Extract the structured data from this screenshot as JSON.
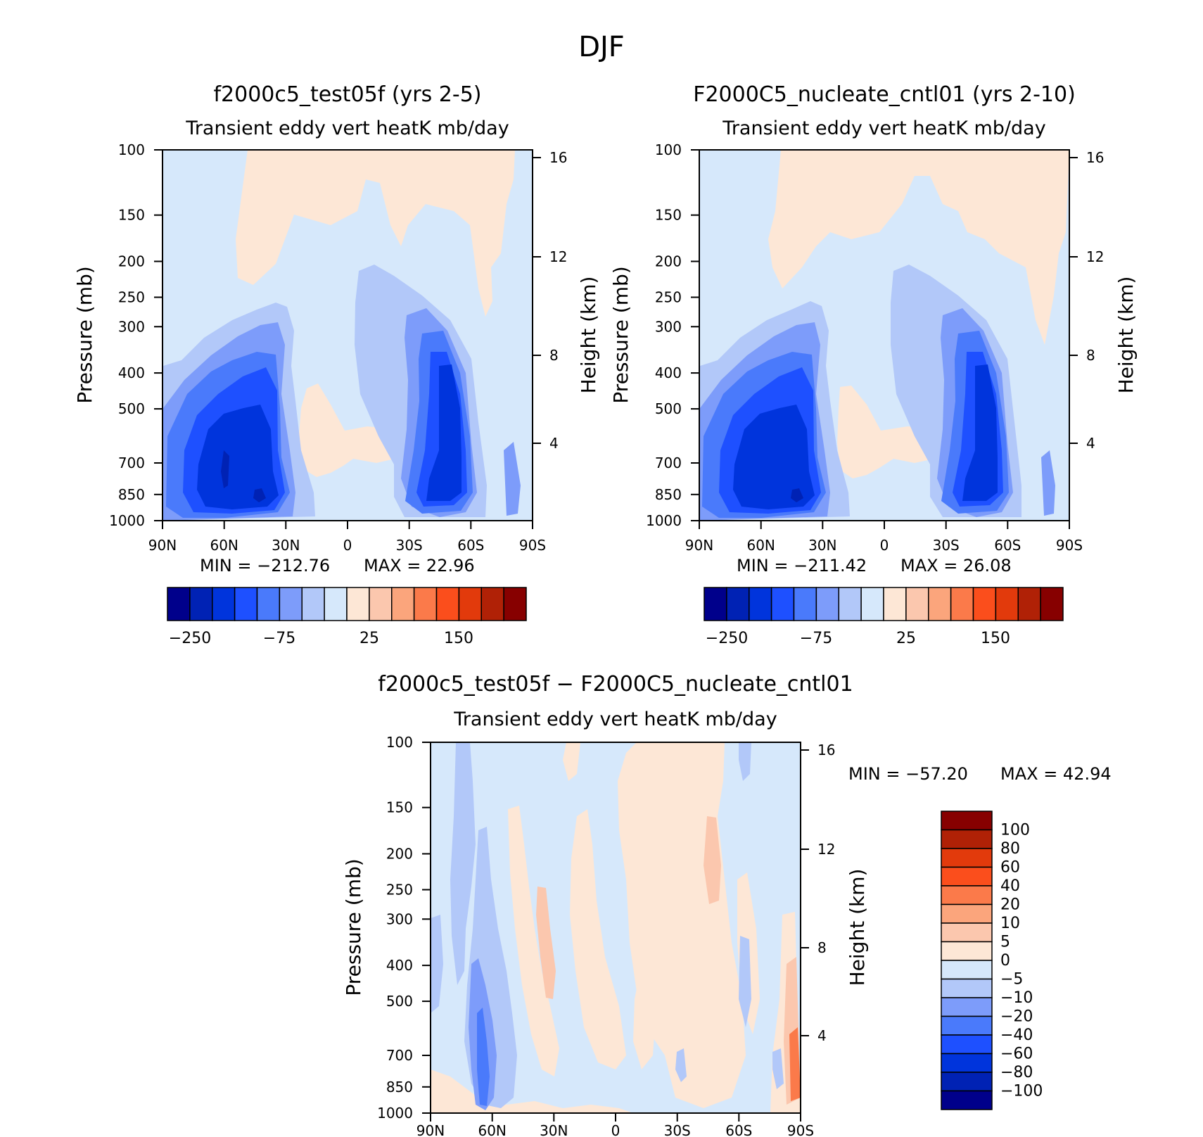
{
  "figure_title": "DJF",
  "colors": {
    "main_scale": [
      "#00008b",
      "#0022b4",
      "#0034dc",
      "#1e50ff",
      "#4a7afb",
      "#7d9cfa",
      "#b2c8f9",
      "#d6e8fb",
      "#fde7d6",
      "#fbc7ae",
      "#fba57c",
      "#fb7a4a",
      "#fb4e1c",
      "#e23a0c",
      "#b02106",
      "#870000"
    ],
    "diff_scale": [
      "#00008b",
      "#0022b4",
      "#0034dc",
      "#1e50ff",
      "#4a7afb",
      "#7d9cfa",
      "#b2c8f9",
      "#d6e8fb",
      "#fde7d6",
      "#fbc7ae",
      "#fba57c",
      "#fb7a4a",
      "#fb4e1c",
      "#e23a0c",
      "#b02106",
      "#870000"
    ]
  },
  "chart_data": [
    {
      "type": "heatmap",
      "title": "f2000c5_test05f (yrs 2-5)",
      "subtitle": "Transient eddy vert heatK mb/day",
      "ylabel": "Pressure (mb)",
      "y2label": "Height (km)",
      "x_ticks": [
        "90N",
        "60N",
        "30N",
        "0",
        "30S",
        "60S",
        "90S"
      ],
      "y_ticks": [
        100,
        150,
        200,
        250,
        300,
        400,
        500,
        700,
        850,
        1000
      ],
      "y_log": true,
      "y2_ticks": [
        4,
        8,
        12,
        16
      ],
      "min_label": "MIN = −212.76",
      "max_label": "MAX = 22.96",
      "colorbar_labels": [
        "−250",
        "−75",
        "25",
        "150"
      ],
      "colorbar_levels": 16
    },
    {
      "type": "heatmap",
      "title": "F2000C5_nucleate_cntl01 (yrs 2-10)",
      "subtitle": "Transient eddy vert heatK mb/day",
      "ylabel": "Pressure (mb)",
      "y2label": "Height (km)",
      "x_ticks": [
        "90N",
        "60N",
        "30N",
        "0",
        "30S",
        "60S",
        "90S"
      ],
      "y_ticks": [
        100,
        150,
        200,
        250,
        300,
        400,
        500,
        700,
        850,
        1000
      ],
      "y_log": true,
      "y2_ticks": [
        4,
        8,
        12,
        16
      ],
      "min_label": "MIN = −211.42",
      "max_label": "MAX = 26.08",
      "colorbar_labels": [
        "−250",
        "−75",
        "25",
        "150"
      ],
      "colorbar_levels": 16
    },
    {
      "type": "heatmap",
      "title": "f2000c5_test05f − F2000C5_nucleate_cntl01",
      "subtitle": "Transient eddy vert heatK mb/day",
      "ylabel": "Pressure (mb)",
      "y2label": "Height (km)",
      "x_ticks": [
        "90N",
        "60N",
        "30N",
        "0",
        "30S",
        "60S",
        "90S"
      ],
      "y_ticks": [
        100,
        150,
        200,
        250,
        300,
        400,
        500,
        700,
        850,
        1000
      ],
      "y_log": true,
      "y2_ticks": [
        4,
        8,
        12,
        16
      ],
      "min_label": "MIN = −57.20",
      "max_label": "MAX = 42.94",
      "colorbar_labels": [
        "100",
        "80",
        "60",
        "40",
        "20",
        "10",
        "5",
        "0",
        "−5",
        "−10",
        "−20",
        "−40",
        "−60",
        "−80",
        "−100"
      ],
      "colorbar_levels": 16
    }
  ]
}
